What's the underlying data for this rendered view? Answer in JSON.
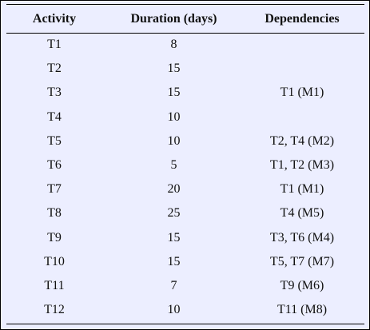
{
  "table": {
    "headers": [
      "Activity",
      "Duration (days)",
      "Dependencies"
    ],
    "rows": [
      {
        "activity": "T1",
        "duration": "8",
        "dependencies": ""
      },
      {
        "activity": "T2",
        "duration": "15",
        "dependencies": ""
      },
      {
        "activity": "T3",
        "duration": "15",
        "dependencies": "T1 (M1)"
      },
      {
        "activity": "T4",
        "duration": "10",
        "dependencies": ""
      },
      {
        "activity": "T5",
        "duration": "10",
        "dependencies": "T2, T4 (M2)"
      },
      {
        "activity": "T6",
        "duration": "5",
        "dependencies": "T1, T2 (M3)"
      },
      {
        "activity": "T7",
        "duration": "20",
        "dependencies": "T1 (M1)"
      },
      {
        "activity": "T8",
        "duration": "25",
        "dependencies": "T4 (M5)"
      },
      {
        "activity": "T9",
        "duration": "15",
        "dependencies": "T3, T6 (M4)"
      },
      {
        "activity": "T10",
        "duration": "15",
        "dependencies": "T5, T7 (M7)"
      },
      {
        "activity": "T11",
        "duration": "7",
        "dependencies": "T9 (M6)"
      },
      {
        "activity": "T12",
        "duration": "10",
        "dependencies": "T11 (M8)"
      }
    ]
  }
}
